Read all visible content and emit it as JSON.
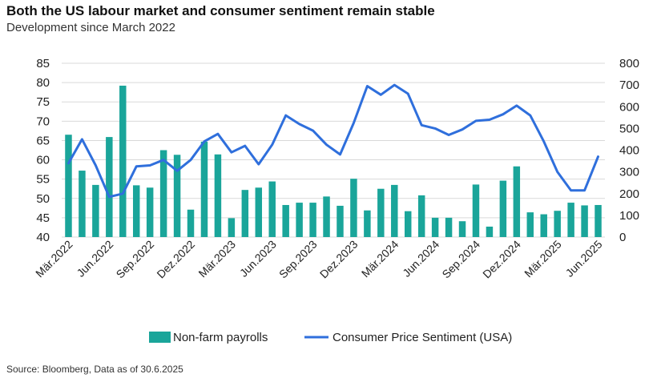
{
  "chart_data": {
    "type": "bar+line",
    "title": "Both the US labour market and consumer sentiment remain stable",
    "subtitle": "Development since March 2022",
    "source": "Source: Bloomberg, Data as of 30.6.2025",
    "x_labels": [
      "Mär.2022",
      "Jun.2022",
      "Sep.2022",
      "Dez.2022",
      "Mär.2023",
      "Jun.2023",
      "Sep.2023",
      "Dez.2023",
      "Mär.2024",
      "Jun.2024",
      "Sep.2024",
      "Dez.2024",
      "Mär.2025",
      "Jun.2025"
    ],
    "left_axis": {
      "ylim": [
        40,
        85
      ],
      "ticks": [
        40,
        45,
        50,
        55,
        60,
        65,
        70,
        75,
        80,
        85
      ]
    },
    "right_axis": {
      "ylim": [
        0,
        800
      ],
      "ticks": [
        0,
        100,
        200,
        300,
        400,
        500,
        600,
        700,
        800
      ]
    },
    "grid": true,
    "legend_position": "bottom",
    "series": [
      {
        "name": "Non-farm payrolls",
        "type": "bar",
        "axis": "left",
        "color": "#1aa59a",
        "values": [
          66.5,
          57.2,
          53.5,
          65.9,
          79.2,
          53.4,
          52.8,
          62.5,
          61.3,
          47.1,
          64.7,
          61.4,
          44.9,
          52.2,
          52.8,
          54.4,
          48.3,
          48.9,
          48.9,
          50.5,
          48.1,
          55.1,
          46.9,
          52.5,
          53.5,
          46.7,
          50.8,
          45.0,
          45.0,
          44.1,
          53.6,
          42.7,
          54.6,
          58.3,
          46.4,
          45.9,
          46.8,
          48.9,
          48.2,
          48.3
        ]
      },
      {
        "name": "Consumer Price Sentiment (USA)",
        "type": "line",
        "axis": "right",
        "color": "#2f6fdc",
        "values": [
          340,
          450,
          330,
          185,
          200,
          325,
          330,
          355,
          305,
          355,
          440,
          475,
          390,
          420,
          335,
          425,
          560,
          520,
          490,
          425,
          380,
          525,
          695,
          655,
          700,
          660,
          515,
          500,
          470,
          495,
          535,
          540,
          565,
          605,
          560,
          440,
          300,
          215,
          215,
          370
        ]
      }
    ]
  }
}
